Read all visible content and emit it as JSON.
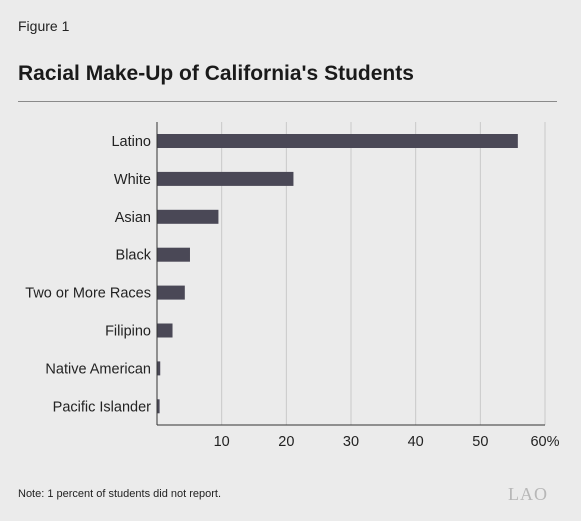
{
  "figure_label": "Figure 1",
  "title": "Racial Make-Up of California's Students",
  "note": "Note: 1 percent of students did not report.",
  "logo_text": "LAO",
  "colors": {
    "bar": "#4a4856",
    "gridline": "#c9c9c9",
    "axis": "#333333",
    "background": "#ebebeb"
  },
  "chart_data": {
    "type": "bar",
    "orientation": "horizontal",
    "categories": [
      "Latino",
      "White",
      "Asian",
      "Black",
      "Two or More Races",
      "Filipino",
      "Native American",
      "Pacific Islander"
    ],
    "values": [
      55.8,
      21.1,
      9.5,
      5.1,
      4.3,
      2.4,
      0.5,
      0.4
    ],
    "xlim": [
      0,
      60
    ],
    "xticks": [
      10,
      20,
      30,
      40,
      50,
      60
    ],
    "xtick_labels": [
      "10",
      "20",
      "30",
      "40",
      "50",
      "60%"
    ],
    "grid": true
  }
}
